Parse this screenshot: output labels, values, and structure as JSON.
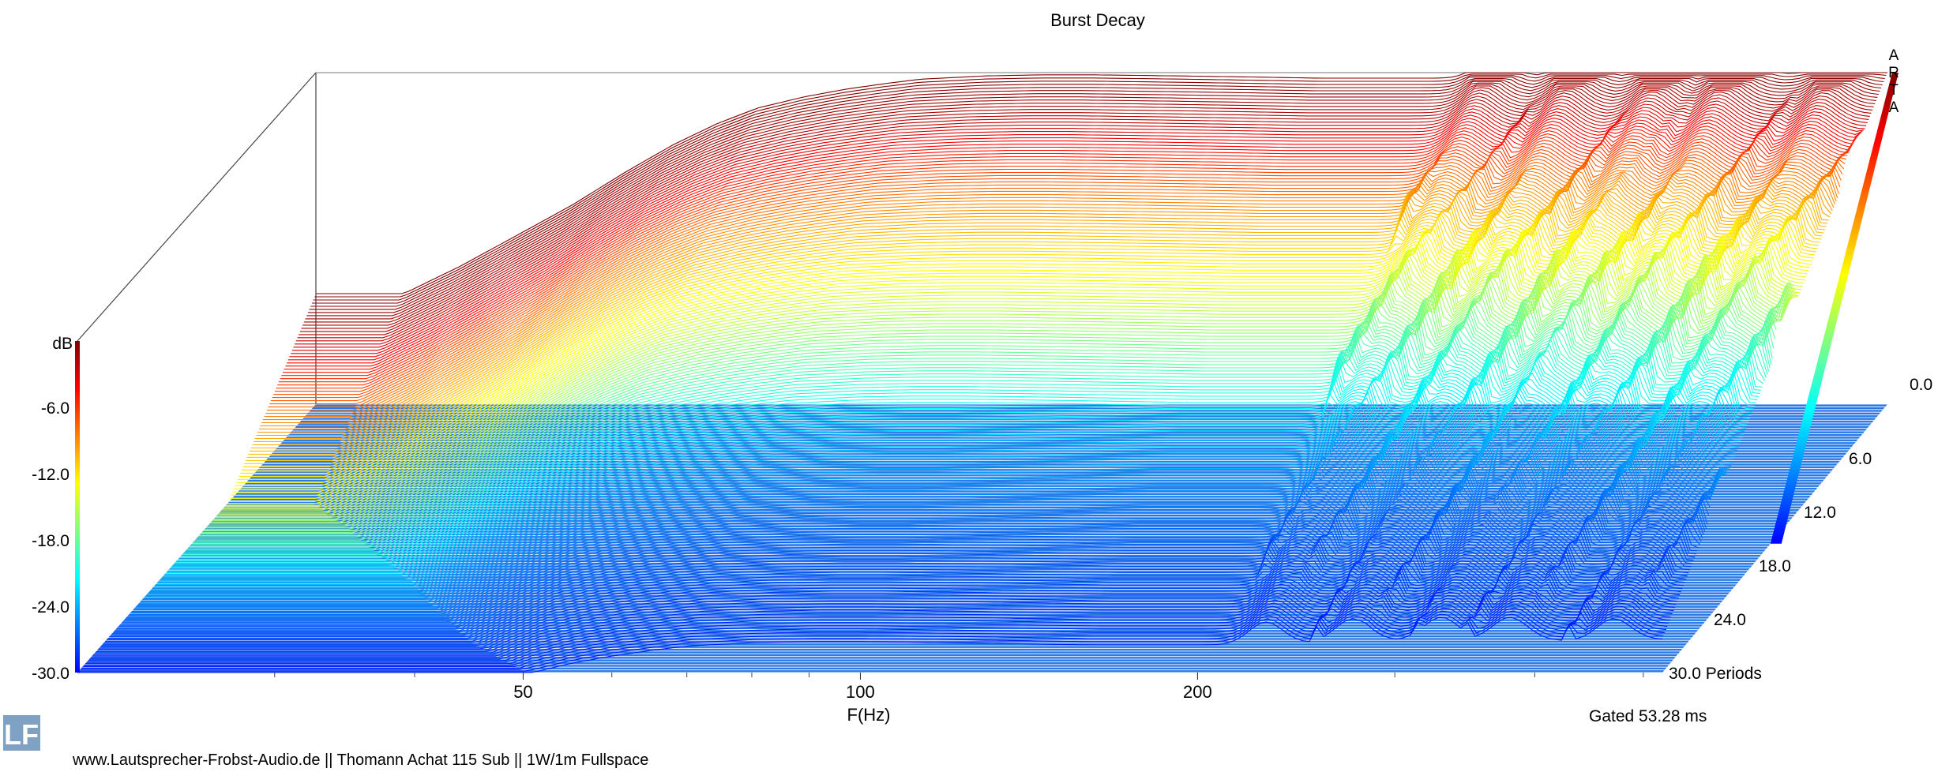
{
  "chart_data": {
    "type": "waterfall",
    "title": "Burst Decay",
    "xlabel": "F(Hz)",
    "zlabel": "dB",
    "x_scale": "log",
    "x_range": [
      20,
      520
    ],
    "x_ticks": [
      50,
      100,
      200
    ],
    "y_ticks": [
      -6.0,
      -12.0,
      -18.0,
      -24.0,
      -30.0
    ],
    "y_range": [
      -30,
      0
    ],
    "depth_ticks": [
      0.0,
      6.0,
      12.0,
      18.0,
      24.0,
      30.0
    ],
    "depth_label": "Periods",
    "depth_last_tick_text": "30.0 Periods",
    "depth_range": [
      0,
      30
    ],
    "slice_count": 181,
    "side_label": "ARTA",
    "gated_text": "Gated 53.28 ms",
    "colormap": [
      "#0000ff",
      "#0080ff",
      "#00ffff",
      "#80ff80",
      "#ffff00",
      "#ff8000",
      "#ff0000",
      "#800000"
    ],
    "floor_color": "#2a7ae6",
    "front_response": {
      "freq_hz": [
        24,
        27,
        30,
        34,
        38,
        42,
        46,
        50,
        55,
        60,
        65,
        70,
        80,
        90,
        100,
        120,
        140,
        160,
        180,
        200,
        220,
        250,
        280,
        320,
        360,
        400,
        450,
        500,
        520
      ],
      "db": [
        -20,
        -17.5,
        -15,
        -12,
        -9,
        -6.5,
        -4.6,
        -3.2,
        -2.2,
        -1.5,
        -1.0,
        -0.6,
        -0.3,
        -0.2,
        -0.2,
        -0.3,
        -0.4,
        -0.5,
        -0.5,
        -0.5,
        -0.5,
        -0.3,
        -0.1,
        0,
        0,
        0,
        -0.2,
        0,
        0
      ]
    },
    "late_resonances_hz": [
      230,
      275,
      330,
      380,
      470
    ]
  },
  "footer": {
    "logo_text": "LF",
    "caption_parts": [
      "www.Lautsprecher-Frobst-Audio.de",
      "Thomann Achat 115 Sub",
      "1W/1m Fullspace"
    ]
  }
}
